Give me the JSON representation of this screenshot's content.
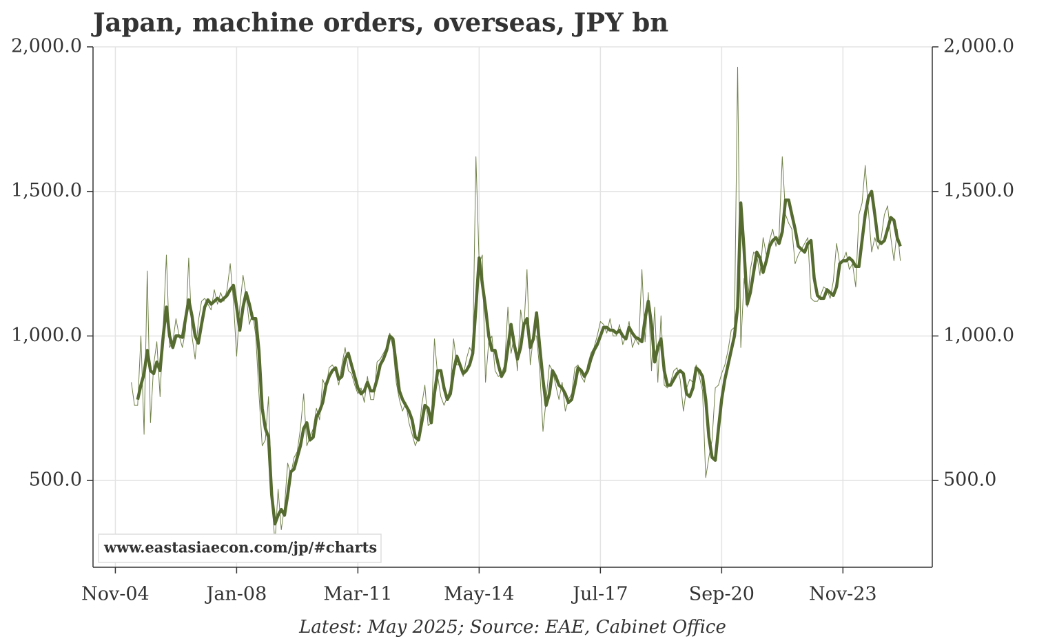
{
  "chart_data": {
    "type": "line",
    "title": "Japan, machine orders, overseas, JPY bn",
    "source": "Latest: May 2025; Source: EAE, Cabinet Office",
    "watermark": "www.eastasiaecon.com/jp/#charts",
    "x": [
      "2005-04",
      "2005-05",
      "2005-06",
      "2005-07",
      "2005-08",
      "2005-09",
      "2005-10",
      "2005-11",
      "2005-12",
      "2006-01",
      "2006-02",
      "2006-03",
      "2006-04",
      "2006-05",
      "2006-06",
      "2006-07",
      "2006-08",
      "2006-09",
      "2006-10",
      "2006-11",
      "2006-12",
      "2007-01",
      "2007-02",
      "2007-03",
      "2007-04",
      "2007-05",
      "2007-06",
      "2007-07",
      "2007-08",
      "2007-09",
      "2007-10",
      "2007-11",
      "2007-12",
      "2008-01",
      "2008-02",
      "2008-03",
      "2008-04",
      "2008-05",
      "2008-06",
      "2008-07",
      "2008-08",
      "2008-09",
      "2008-10",
      "2008-11",
      "2008-12",
      "2009-01",
      "2009-02",
      "2009-03",
      "2009-04",
      "2009-05",
      "2009-06",
      "2009-07",
      "2009-08",
      "2009-09",
      "2009-10",
      "2009-11",
      "2009-12",
      "2010-01",
      "2010-02",
      "2010-03",
      "2010-04",
      "2010-05",
      "2010-06",
      "2010-07",
      "2010-08",
      "2010-09",
      "2010-10",
      "2010-11",
      "2010-12",
      "2011-01",
      "2011-02",
      "2011-03",
      "2011-04",
      "2011-05",
      "2011-06",
      "2011-07",
      "2011-08",
      "2011-09",
      "2011-10",
      "2011-11",
      "2011-12",
      "2012-01",
      "2012-02",
      "2012-03",
      "2012-04",
      "2012-05",
      "2012-06",
      "2012-07",
      "2012-08",
      "2012-09",
      "2012-10",
      "2012-11",
      "2012-12",
      "2013-01",
      "2013-02",
      "2013-03",
      "2013-04",
      "2013-05",
      "2013-06",
      "2013-07",
      "2013-08",
      "2013-09",
      "2013-10",
      "2013-11",
      "2013-12",
      "2014-01",
      "2014-02",
      "2014-03",
      "2014-04",
      "2014-05",
      "2014-06",
      "2014-07",
      "2014-08",
      "2014-09",
      "2014-10",
      "2014-11",
      "2014-12",
      "2015-01",
      "2015-02",
      "2015-03",
      "2015-04",
      "2015-05",
      "2015-06",
      "2015-07",
      "2015-08",
      "2015-09",
      "2015-10",
      "2015-11",
      "2015-12",
      "2016-01",
      "2016-02",
      "2016-03",
      "2016-04",
      "2016-05",
      "2016-06",
      "2016-07",
      "2016-08",
      "2016-09",
      "2016-10",
      "2016-11",
      "2016-12",
      "2017-01",
      "2017-02",
      "2017-03",
      "2017-04",
      "2017-05",
      "2017-06",
      "2017-07",
      "2017-08",
      "2017-09",
      "2017-10",
      "2017-11",
      "2017-12",
      "2018-01",
      "2018-02",
      "2018-03",
      "2018-04",
      "2018-05",
      "2018-06",
      "2018-07",
      "2018-08",
      "2018-09",
      "2018-10",
      "2018-11",
      "2018-12",
      "2019-01",
      "2019-02",
      "2019-03",
      "2019-04",
      "2019-05",
      "2019-06",
      "2019-07",
      "2019-08",
      "2019-09",
      "2019-10",
      "2019-11",
      "2019-12",
      "2020-01",
      "2020-02",
      "2020-03",
      "2020-04",
      "2020-05",
      "2020-06",
      "2020-07",
      "2020-08",
      "2020-09",
      "2020-10",
      "2020-11",
      "2020-12",
      "2021-01",
      "2021-02",
      "2021-03",
      "2021-04",
      "2021-05",
      "2021-06",
      "2021-07",
      "2021-08",
      "2021-09",
      "2021-10",
      "2021-11",
      "2021-12",
      "2022-01",
      "2022-02",
      "2022-03",
      "2022-04",
      "2022-05",
      "2022-06",
      "2022-07",
      "2022-08",
      "2022-09",
      "2022-10",
      "2022-11",
      "2022-12",
      "2023-01",
      "2023-02",
      "2023-03",
      "2023-04",
      "2023-05",
      "2023-06",
      "2023-07",
      "2023-08",
      "2023-09",
      "2023-10",
      "2023-11",
      "2023-12",
      "2024-01",
      "2024-02",
      "2024-03",
      "2024-04",
      "2024-05",
      "2024-06",
      "2024-07",
      "2024-08",
      "2024-09",
      "2024-10",
      "2024-11",
      "2024-12",
      "2025-01",
      "2025-02",
      "2025-03",
      "2025-04",
      "2025-05"
    ],
    "series": [
      {
        "color": "#6f8048",
        "width": 1,
        "values": [
          840,
          760,
          760,
          1000,
          660,
          1225,
          700,
          900,
          980,
          790,
          1030,
          1280,
          960,
          980,
          1060,
          1000,
          960,
          1020,
          1270,
          1000,
          920,
          1050,
          1120,
          1130,
          1110,
          1090,
          1160,
          1110,
          1150,
          1120,
          1160,
          1250,
          1120,
          930,
          1100,
          1210,
          1140,
          1040,
          1080,
          1000,
          800,
          620,
          640,
          790,
          450,
          280,
          470,
          330,
          410,
          560,
          520,
          580,
          600,
          680,
          800,
          620,
          650,
          680,
          750,
          710,
          850,
          820,
          890,
          900,
          880,
          830,
          900,
          960,
          880,
          870,
          830,
          800,
          820,
          770,
          860,
          780,
          780,
          910,
          920,
          940,
          960,
          1010,
          960,
          840,
          780,
          740,
          770,
          700,
          660,
          620,
          650,
          760,
          830,
          690,
          700,
          990,
          860,
          790,
          760,
          790,
          820,
          990,
          900,
          900,
          860,
          920,
          960,
          940,
          1620,
          1250,
          1280,
          840,
          980,
          1000,
          880,
          860,
          870,
          900,
          1100,
          940,
          1000,
          880,
          1090,
          1020,
          1230,
          900,
          1000,
          1000,
          880,
          670,
          780,
          900,
          880,
          830,
          780,
          840,
          740,
          780,
          800,
          890,
          900,
          860,
          840,
          900,
          940,
          960,
          1000,
          1050,
          1040,
          1010,
          1060,
          1000,
          1000,
          1040,
          970,
          1000,
          1050,
          960,
          990,
          970,
          1230,
          980,
          1150,
          880,
          1100,
          840,
          1070,
          830,
          820,
          840,
          880,
          890,
          850,
          740,
          820,
          850,
          840,
          900,
          860,
          810,
          510,
          580,
          640,
          820,
          830,
          870,
          900,
          950,
          1020,
          1030,
          1930,
          960,
          1200,
          1100,
          1230,
          1290,
          1280,
          1210,
          1340,
          1280,
          1330,
          1370,
          1310,
          1350,
          1620,
          1420,
          1390,
          1370,
          1250,
          1280,
          1300,
          1320,
          1340,
          1130,
          1120,
          1120,
          1140,
          1170,
          1160,
          1130,
          1190,
          1320,
          1250,
          1260,
          1290,
          1230,
          1250,
          1170,
          1420,
          1460,
          1590,
          1430,
          1290,
          1340,
          1300,
          1340,
          1420,
          1450,
          1340,
          1260,
          1370,
          1260
        ]
      },
      {
        "color": "#556b2f",
        "width": 4.5,
        "values": [
          null,
          null,
          780,
          830,
          870,
          950,
          880,
          870,
          910,
          880,
          1000,
          1100,
          1000,
          960,
          1000,
          1000,
          995,
          1060,
          1125,
          1070,
          1000,
          975,
          1040,
          1100,
          1125,
          1110,
          1120,
          1130,
          1120,
          1130,
          1140,
          1160,
          1175,
          1100,
          1020,
          1100,
          1150,
          1110,
          1060,
          1060,
          950,
          750,
          680,
          650,
          450,
          350,
          380,
          400,
          380,
          450,
          530,
          540,
          580,
          620,
          680,
          700,
          640,
          650,
          720,
          740,
          770,
          830,
          860,
          880,
          890,
          850,
          860,
          920,
          940,
          900,
          860,
          820,
          800,
          810,
          840,
          810,
          810,
          850,
          900,
          920,
          950,
          1000,
          990,
          900,
          810,
          780,
          760,
          740,
          710,
          650,
          640,
          700,
          760,
          750,
          700,
          800,
          880,
          880,
          820,
          780,
          800,
          880,
          930,
          900,
          870,
          880,
          900,
          940,
          1100,
          1270,
          1180,
          1100,
          1000,
          950,
          950,
          900,
          860,
          880,
          960,
          1040,
          970,
          920,
          960,
          1040,
          1060,
          960,
          990,
          1080,
          960,
          850,
          760,
          800,
          880,
          860,
          830,
          820,
          800,
          770,
          780,
          830,
          890,
          880,
          860,
          880,
          920,
          950,
          970,
          1000,
          1030,
          1030,
          1020,
          1020,
          1010,
          1020,
          1000,
          990,
          1030,
          1010,
          995,
          990,
          980,
          1060,
          1120,
          1040,
          910,
          960,
          990,
          880,
          830,
          830,
          850,
          870,
          880,
          870,
          800,
          790,
          820,
          890,
          880,
          860,
          780,
          650,
          580,
          570,
          680,
          780,
          850,
          900,
          950,
          1000,
          1100,
          1460,
          1300,
          1110,
          1150,
          1220,
          1290,
          1270,
          1220,
          1260,
          1310,
          1330,
          1340,
          1320,
          1360,
          1470,
          1470,
          1420,
          1370,
          1310,
          1300,
          1290,
          1320,
          1330,
          1200,
          1140,
          1130,
          1130,
          1160,
          1150,
          1140,
          1170,
          1250,
          1260,
          1260,
          1270,
          1260,
          1240,
          1240,
          1330,
          1420,
          1480,
          1500,
          1420,
          1330,
          1320,
          1330,
          1370,
          1410,
          1400,
          1340,
          1310
        ]
      }
    ],
    "xlim": [
      "2004-04",
      "2026-03"
    ],
    "xticks": [
      {
        "value": "2004-11",
        "label": "Nov-04"
      },
      {
        "value": "2008-01",
        "label": "Jan-08"
      },
      {
        "value": "2011-03",
        "label": "Mar-11"
      },
      {
        "value": "2014-05",
        "label": "May-14"
      },
      {
        "value": "2017-07",
        "label": "Jul-17"
      },
      {
        "value": "2020-09",
        "label": "Sep-20"
      },
      {
        "value": "2023-11",
        "label": "Nov-23"
      }
    ],
    "ylim": [
      200,
      2000
    ],
    "yticks": [
      {
        "value": 500,
        "label": "500.0"
      },
      {
        "value": 1000,
        "label": "1,000.0"
      },
      {
        "value": 1500,
        "label": "1,500.0"
      },
      {
        "value": 2000,
        "label": "2,000.0"
      }
    ],
    "grid": true
  }
}
